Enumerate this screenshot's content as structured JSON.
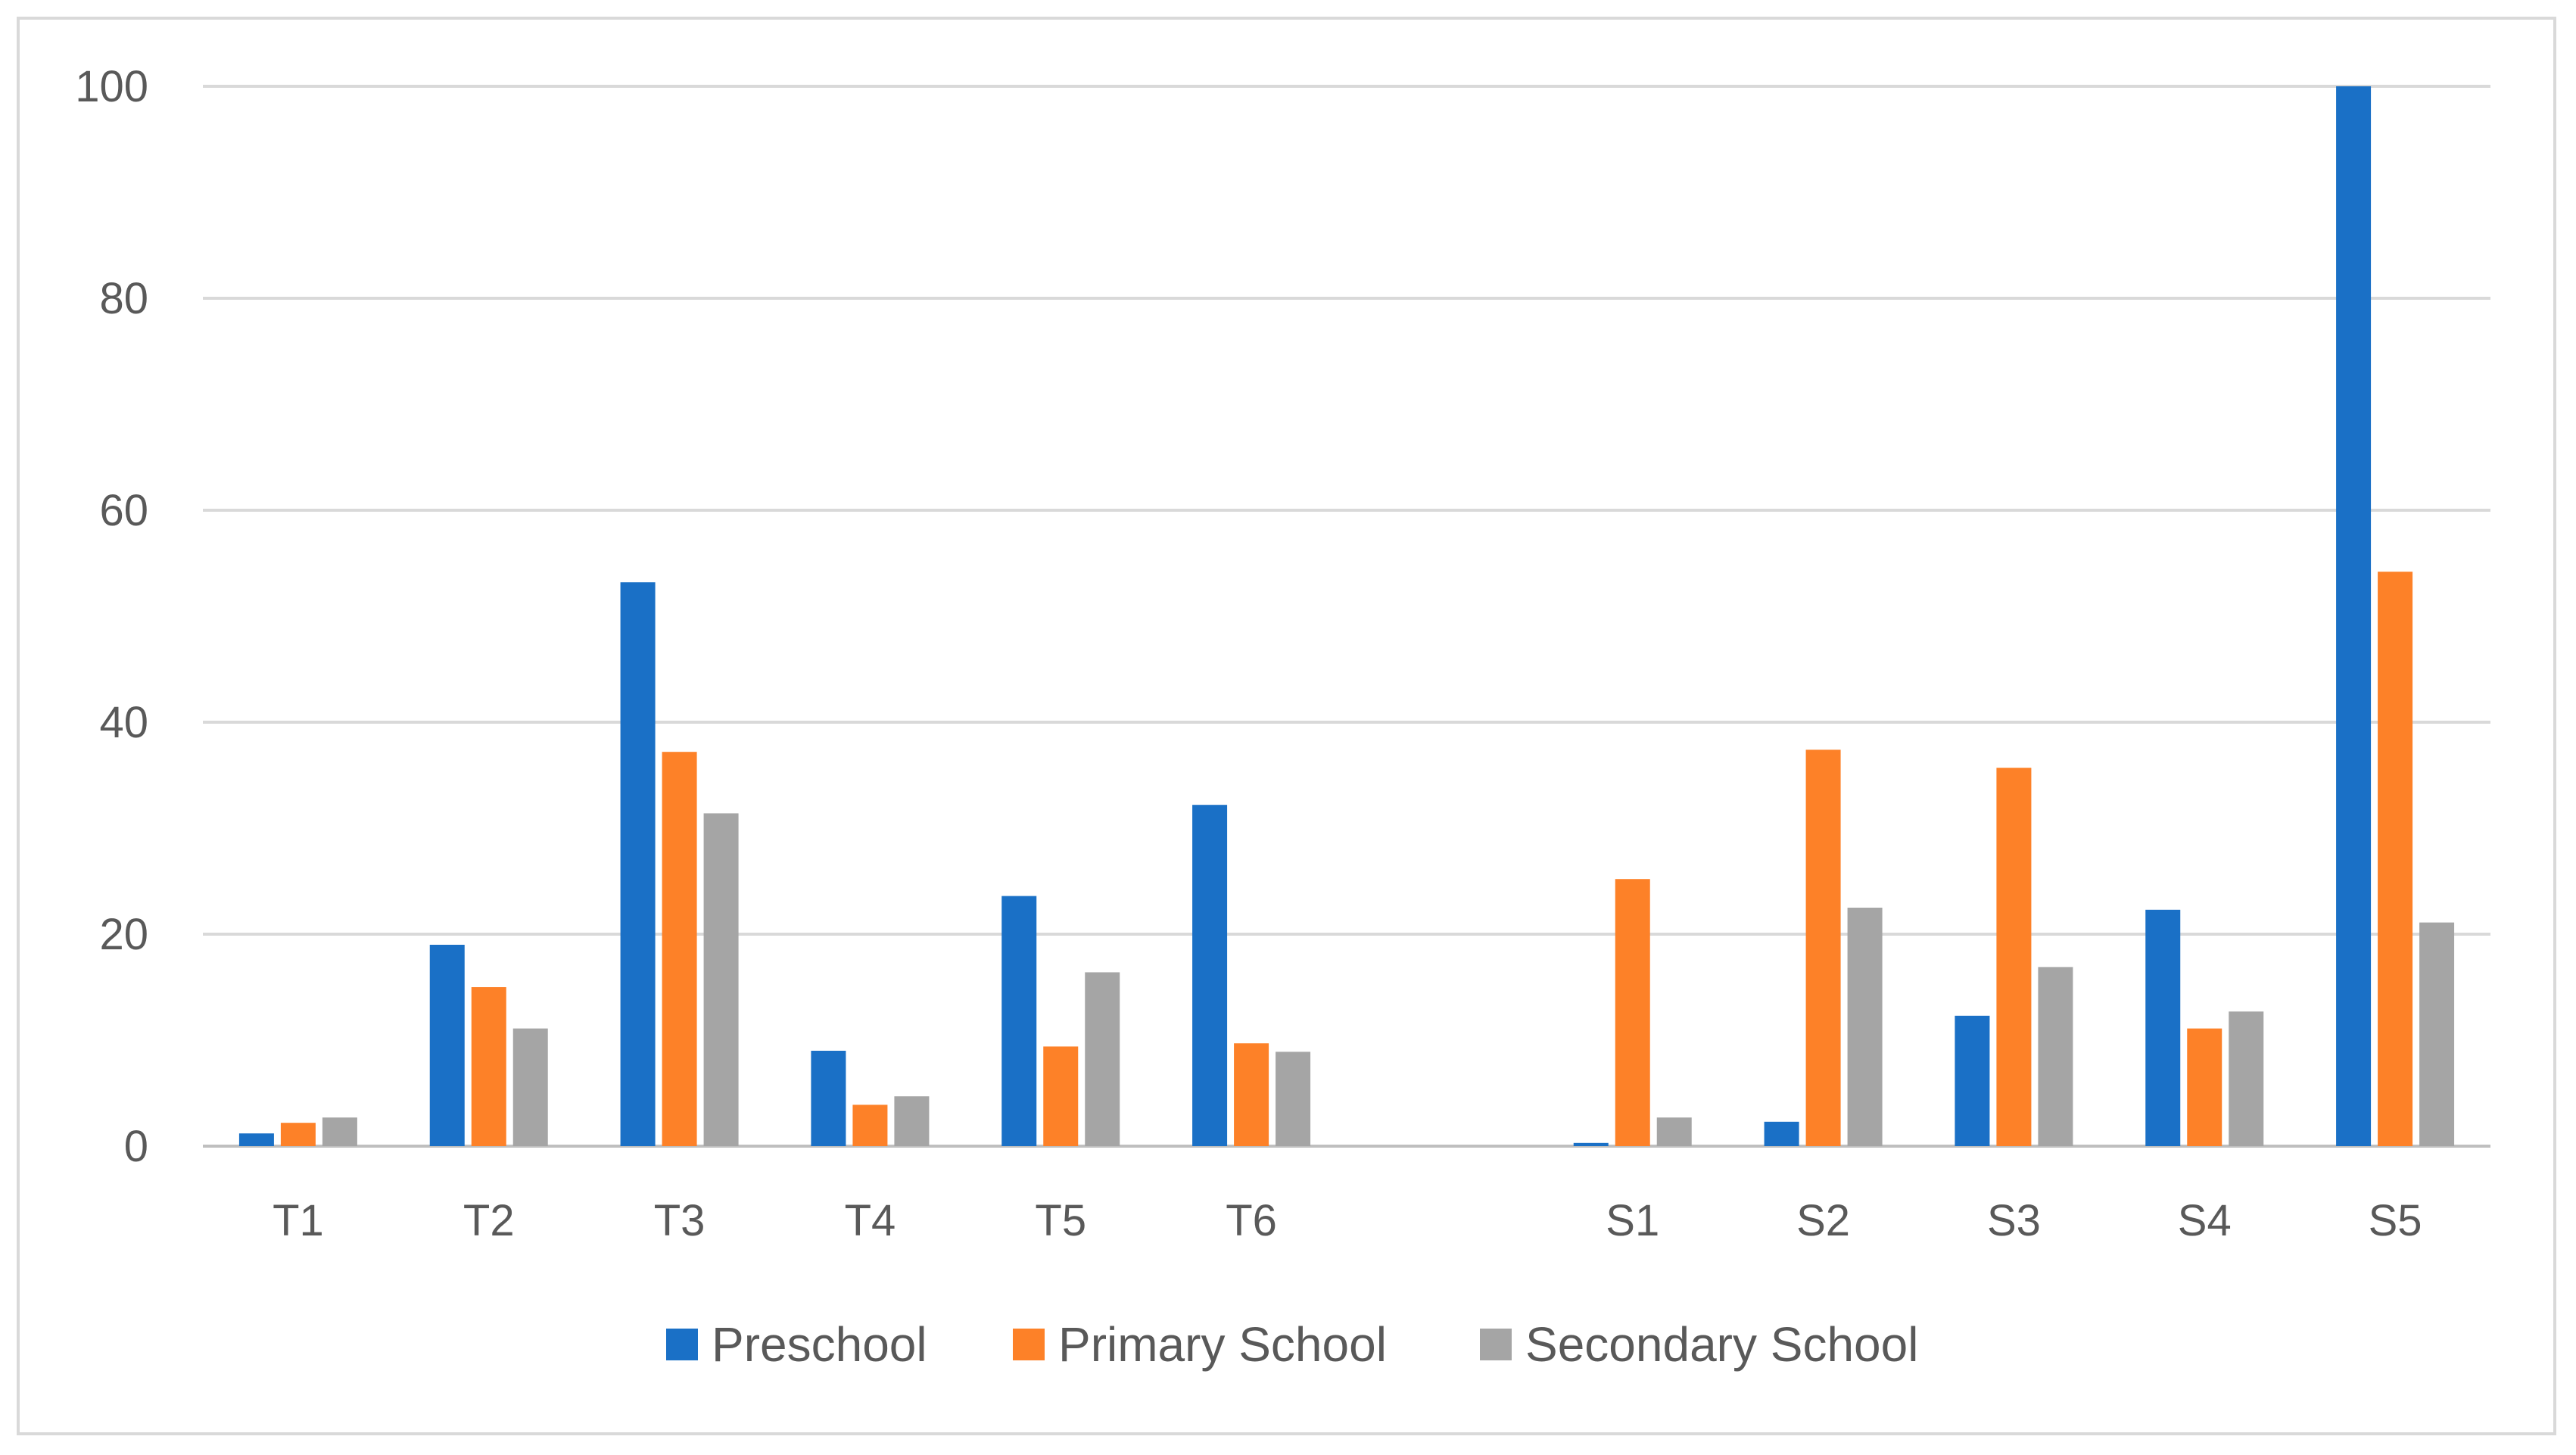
{
  "chart_data": {
    "type": "bar",
    "categories": [
      "T1",
      "T2",
      "T3",
      "T4",
      "T5",
      "T6",
      "",
      "S1",
      "S2",
      "S3",
      "S4",
      "S5"
    ],
    "series": [
      {
        "name": "Preschool",
        "color": "#1a70c6",
        "values": [
          1.2,
          19,
          53.2,
          9,
          23.6,
          32.2,
          null,
          0.3,
          2.3,
          12.3,
          22.3,
          100
        ]
      },
      {
        "name": "Primary School",
        "color": "#fd8128",
        "values": [
          2.2,
          15,
          37.2,
          3.9,
          9.4,
          9.7,
          null,
          25.2,
          37.4,
          35.7,
          11.1,
          54.2
        ]
      },
      {
        "name": "Secondary School",
        "color": "#a5a5a5",
        "values": [
          2.7,
          11.1,
          31.4,
          4.7,
          16.4,
          8.9,
          null,
          2.7,
          22.5,
          16.9,
          12.7,
          21.1
        ]
      }
    ],
    "y_ticks": [
      "0",
      "20",
      "40",
      "60",
      "80",
      "100"
    ],
    "ylim": [
      0,
      100
    ],
    "grid": true,
    "legend_position": "bottom",
    "title": "",
    "xlabel": "",
    "ylabel": ""
  }
}
